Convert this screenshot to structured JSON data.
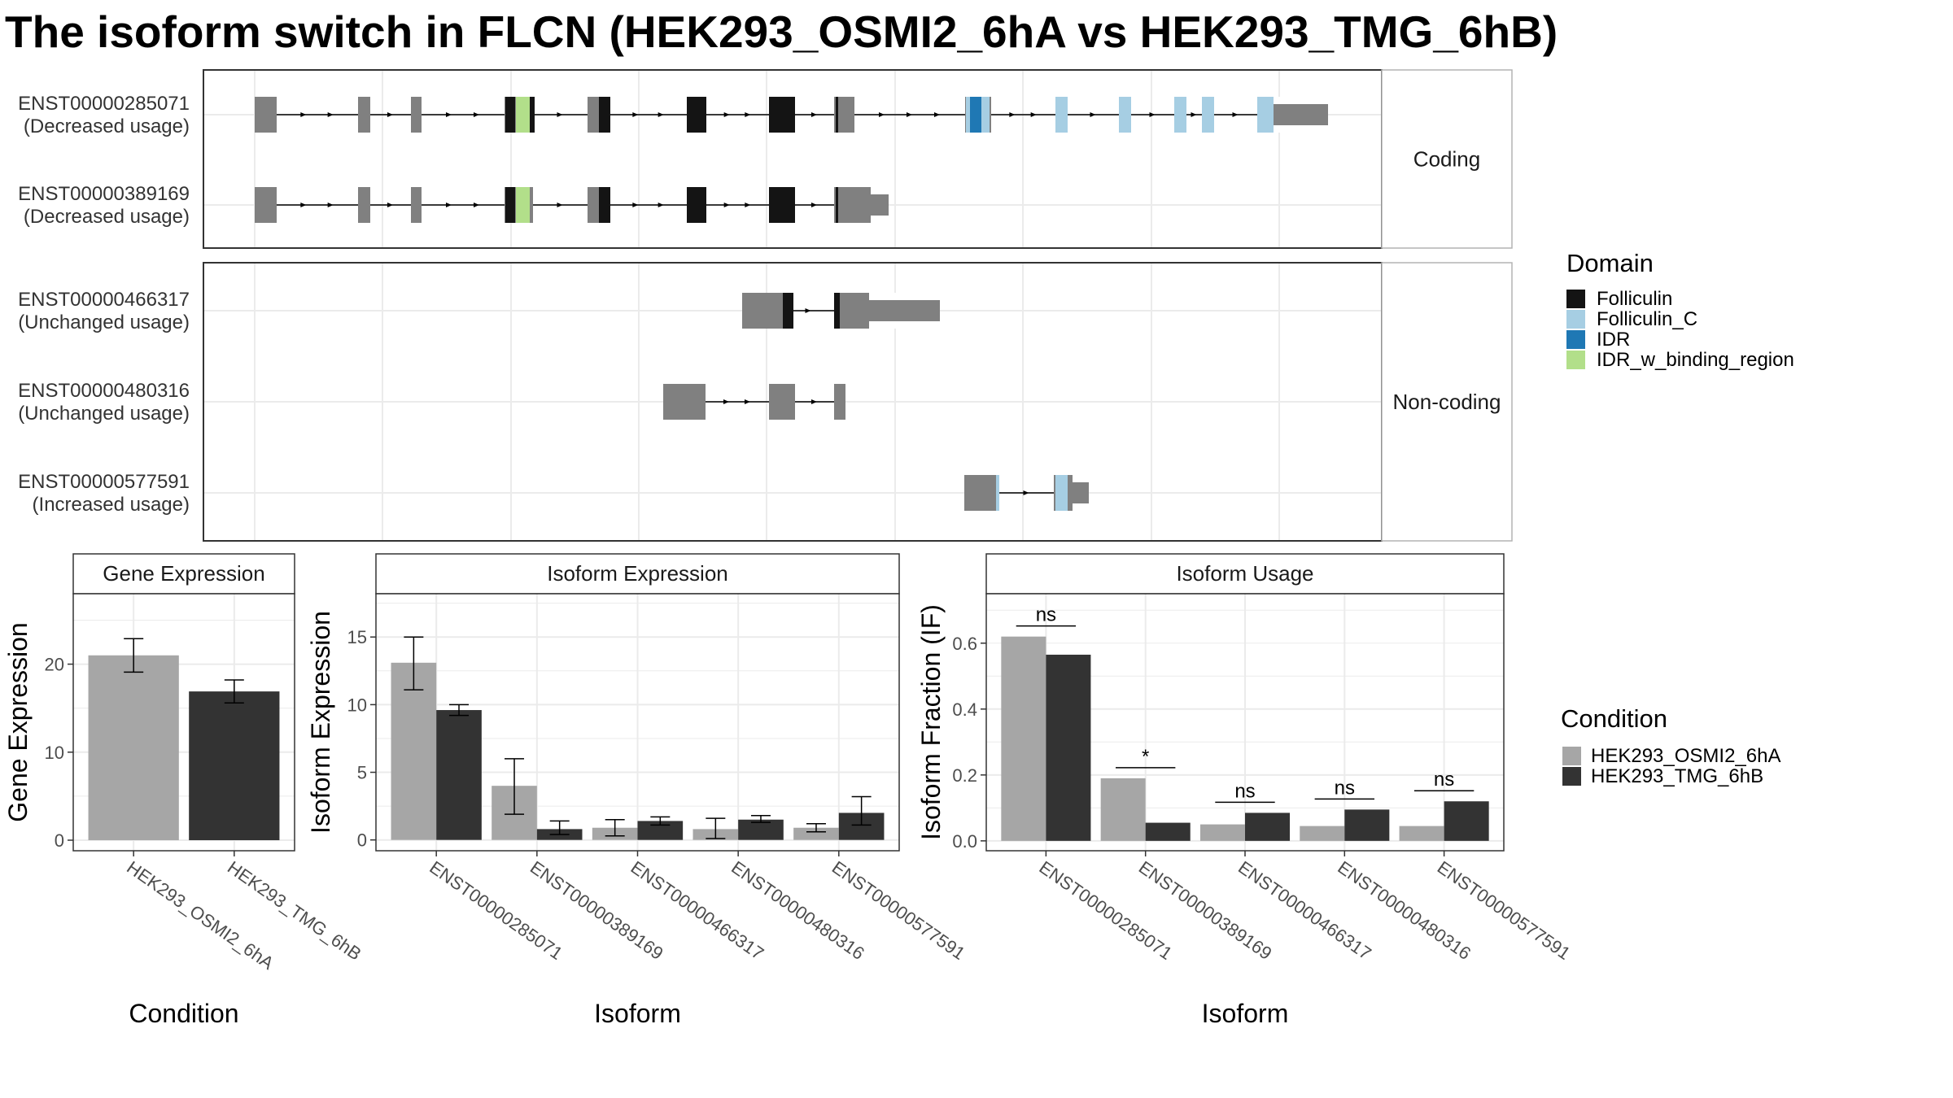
{
  "title": "The isoform switch in FLCN (HEK293_OSMI2_6hA vs HEK293_TMG_6hB)",
  "colors": {
    "exon": "#808080",
    "condition_a": "#a6a6a6",
    "condition_b": "#333333",
    "grid": "#ebebeb",
    "border": "#333333",
    "strip_border": "#b3b3b3"
  },
  "transcripts": {
    "facets": [
      {
        "label": "Coding",
        "rows": [
          {
            "id": "ENST00000285071",
            "status": "(Decreased usage)"
          },
          {
            "id": "ENST00000389169",
            "status": "(Decreased usage)"
          }
        ]
      },
      {
        "label": "Non-coding",
        "rows": [
          {
            "id": "ENST00000466317",
            "status": "(Unchanged usage)"
          },
          {
            "id": "ENST00000480316",
            "status": "(Unchanged usage)"
          },
          {
            "id": "ENST00000577591",
            "status": "(Increased usage)"
          }
        ]
      }
    ],
    "domain_legend": {
      "title": "Domain",
      "items": [
        {
          "name": "Folliculin",
          "color": "#141414"
        },
        {
          "name": "Folliculin_C",
          "color": "#a6cee3"
        },
        {
          "name": "IDR",
          "color": "#1f78b4"
        },
        {
          "name": "IDR_w_binding_region",
          "color": "#b2df8a"
        }
      ]
    }
  },
  "chart_data": [
    {
      "type": "bar",
      "title": "Gene Expression",
      "xlabel": "Condition",
      "ylabel": "Gene Expression",
      "categories": [
        "HEK293_OSMI2_6hA",
        "HEK293_TMG_6hB"
      ],
      "values": [
        21.0,
        16.9
      ],
      "error": [
        [
          19.1,
          22.9
        ],
        [
          15.6,
          18.2
        ]
      ],
      "ylim": [
        -1.2,
        28
      ],
      "yticks": [
        0,
        10,
        20
      ]
    },
    {
      "type": "bar",
      "title": "Isoform Expression",
      "xlabel": "Isoform",
      "ylabel": "Isoform Expression",
      "categories": [
        "ENST00000285071",
        "ENST00000389169",
        "ENST00000466317",
        "ENST00000480316",
        "ENST00000577591"
      ],
      "series": [
        {
          "name": "HEK293_OSMI2_6hA",
          "values": [
            13.1,
            4.0,
            0.9,
            0.8,
            0.9
          ],
          "error": [
            [
              11.1,
              15.0
            ],
            [
              1.9,
              6.0
            ],
            [
              0.3,
              1.5
            ],
            [
              0.1,
              1.6
            ],
            [
              0.6,
              1.2
            ]
          ]
        },
        {
          "name": "HEK293_TMG_6hB",
          "values": [
            9.6,
            0.8,
            1.4,
            1.5,
            2.0
          ],
          "error": [
            [
              9.2,
              10.0
            ],
            [
              0.4,
              1.4
            ],
            [
              1.1,
              1.7
            ],
            [
              1.3,
              1.8
            ],
            [
              1.1,
              3.2
            ]
          ]
        }
      ],
      "ylim": [
        -0.8,
        18.2
      ],
      "yticks": [
        0,
        5,
        10,
        15
      ]
    },
    {
      "type": "bar",
      "title": "Isoform Usage",
      "xlabel": "Isoform",
      "ylabel": "Isoform Fraction (IF)",
      "categories": [
        "ENST00000285071",
        "ENST00000389169",
        "ENST00000466317",
        "ENST00000480316",
        "ENST00000577591"
      ],
      "series": [
        {
          "name": "HEK293_OSMI2_6hA",
          "values": [
            0.62,
            0.19,
            0.05,
            0.045,
            0.045
          ]
        },
        {
          "name": "HEK293_TMG_6hB",
          "values": [
            0.565,
            0.055,
            0.085,
            0.095,
            0.12
          ]
        }
      ],
      "significance": [
        "ns",
        "*",
        "ns",
        "ns",
        "ns"
      ],
      "ylim": [
        -0.03,
        0.75
      ],
      "yticks": [
        0.0,
        0.2,
        0.4,
        0.6
      ],
      "ytick_labels": [
        "0.0",
        "0.2",
        "0.4",
        "0.6"
      ]
    }
  ],
  "condition_legend": {
    "title": "Condition",
    "items": [
      {
        "name": "HEK293_OSMI2_6hA",
        "color": "#a6a6a6"
      },
      {
        "name": "HEK293_TMG_6hB",
        "color": "#333333"
      }
    ]
  }
}
